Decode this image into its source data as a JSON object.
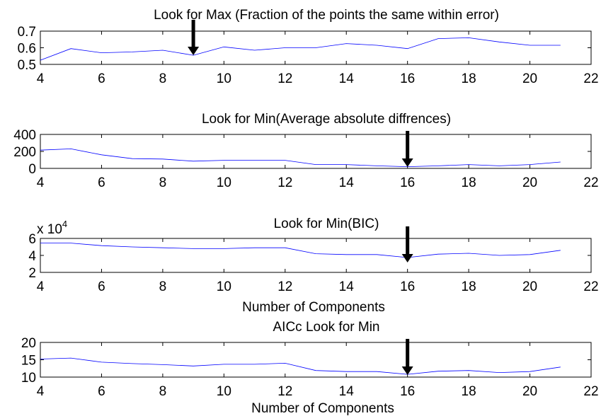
{
  "chart_data": [
    {
      "type": "line",
      "title": "Look for Max (Fraction of the points the same within error)",
      "xlabel": "",
      "ylabel": "",
      "xlim": [
        4,
        22
      ],
      "ylim": [
        0.5,
        0.7
      ],
      "x_ticks": [
        4,
        6,
        8,
        10,
        12,
        14,
        16,
        18,
        20,
        22
      ],
      "y_ticks": [
        0.5,
        0.6,
        0.7
      ],
      "y_multiplier": "",
      "grid": false,
      "series": [
        {
          "color": "#0000ff",
          "x": [
            4,
            5,
            6,
            7,
            8,
            9,
            10,
            11,
            12,
            13,
            14,
            15,
            16,
            17,
            18,
            19,
            20,
            21
          ],
          "y": [
            0.525,
            0.595,
            0.57,
            0.575,
            0.585,
            0.555,
            0.605,
            0.585,
            0.6,
            0.6,
            0.625,
            0.615,
            0.595,
            0.655,
            0.66,
            0.635,
            0.615,
            0.615
          ]
        }
      ],
      "annotations": [
        {
          "type": "arrow",
          "x": 9,
          "label": ""
        }
      ]
    },
    {
      "type": "line",
      "title": "Look for Min(Average absolute diffrences)",
      "xlabel": "",
      "ylabel": "",
      "xlim": [
        4,
        22
      ],
      "ylim": [
        0,
        400
      ],
      "x_ticks": [
        4,
        6,
        8,
        10,
        12,
        14,
        16,
        18,
        20,
        22
      ],
      "y_ticks": [
        0,
        200,
        400
      ],
      "y_multiplier": "",
      "grid": false,
      "series": [
        {
          "color": "#0000ff",
          "x": [
            4,
            5,
            6,
            7,
            8,
            9,
            10,
            11,
            12,
            13,
            14,
            15,
            16,
            17,
            18,
            19,
            20,
            21
          ],
          "y": [
            215,
            230,
            160,
            115,
            110,
            85,
            95,
            95,
            95,
            45,
            45,
            30,
            20,
            30,
            45,
            30,
            45,
            75
          ]
        }
      ],
      "annotations": [
        {
          "type": "arrow",
          "x": 16,
          "label": ""
        }
      ]
    },
    {
      "type": "line",
      "title": "Look for Min(BIC)",
      "xlabel": "",
      "ylabel": "",
      "xlim": [
        4,
        22
      ],
      "ylim": [
        2,
        6
      ],
      "x_ticks": [
        4,
        6,
        8,
        10,
        12,
        14,
        16,
        18,
        20,
        22
      ],
      "y_ticks": [
        2,
        4,
        6
      ],
      "y_multiplier": "x 10",
      "y_multiplier_exp": "4",
      "grid": false,
      "series": [
        {
          "color": "#0000ff",
          "x": [
            4,
            5,
            6,
            7,
            8,
            9,
            10,
            11,
            12,
            13,
            14,
            15,
            16,
            17,
            18,
            19,
            20,
            21
          ],
          "y": [
            5.45,
            5.45,
            5.15,
            5.0,
            4.9,
            4.8,
            4.8,
            4.9,
            4.9,
            4.2,
            4.1,
            4.1,
            3.75,
            4.15,
            4.25,
            4.0,
            4.1,
            4.6
          ]
        }
      ],
      "annotations": [
        {
          "type": "arrow",
          "x": 16,
          "label": ""
        }
      ]
    },
    {
      "type": "line",
      "title": "AICc Look for Min",
      "xlabel": "Number of Components",
      "ylabel": "",
      "xlim": [
        4,
        22
      ],
      "ylim": [
        10,
        20
      ],
      "x_ticks": [
        4,
        6,
        8,
        10,
        12,
        14,
        16,
        18,
        20,
        22
      ],
      "y_ticks": [
        10,
        15,
        20
      ],
      "y_multiplier": "",
      "grid": false,
      "series": [
        {
          "color": "#0000ff",
          "x": [
            4,
            5,
            6,
            7,
            8,
            9,
            10,
            11,
            12,
            13,
            14,
            15,
            16,
            17,
            18,
            19,
            20,
            21
          ],
          "y": [
            15.2,
            15.5,
            14.3,
            13.9,
            13.6,
            13.2,
            13.7,
            13.7,
            14.0,
            11.9,
            11.6,
            11.6,
            10.8,
            11.7,
            11.9,
            11.3,
            11.6,
            12.9
          ]
        }
      ],
      "annotations": [
        {
          "type": "arrow",
          "x": 16,
          "label": ""
        }
      ]
    }
  ],
  "extra_labels": {
    "between_3_and_4_xlabel": "Number of Components"
  }
}
